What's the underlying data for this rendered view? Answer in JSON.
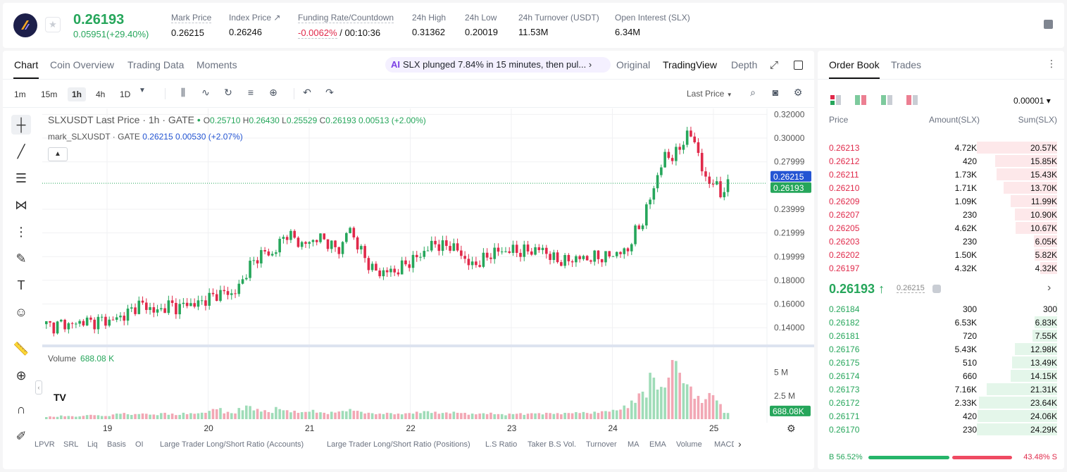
{
  "header": {
    "last_price": "0.26193",
    "change": "0.05951(+29.40%)",
    "stats": [
      {
        "label": "Mark Price",
        "value": "0.26215"
      },
      {
        "label": "Index Price ↗",
        "value": "0.26246"
      },
      {
        "label": "Funding Rate/Countdown",
        "value_red": "-0.0062%",
        "value": " / 00:10:36"
      },
      {
        "label": "24h High",
        "value": "0.31362"
      },
      {
        "label": "24h Low",
        "value": "0.20019"
      },
      {
        "label": "24h Turnover (USDT)",
        "value": "11.53M"
      },
      {
        "label": "Open Interest (SLX)",
        "value": "6.34M"
      }
    ]
  },
  "chart_tabs": [
    "Chart",
    "Coin Overview",
    "Trading Data",
    "Moments"
  ],
  "alert": {
    "ai": "AI",
    "text": "SLX plunged 7.84% in 15 minutes, then pul...",
    "chev": "›"
  },
  "view_tabs": [
    "Original",
    "TradingView",
    "Depth"
  ],
  "timeframes": [
    "1m",
    "15m",
    "1h",
    "4h",
    "1D"
  ],
  "price_type": "Last Price",
  "legend": {
    "symbol": "SLXUSDT Last Price · 1h · GATE",
    "o": "O",
    "o_v": "0.25710",
    "h": "H",
    "h_v": "0.26430",
    "l": "L",
    "l_v": "0.25529",
    "c": "C",
    "c_v": "0.26193",
    "chg": "0.00513 (+2.00%)",
    "mark": "mark_SLXUSDT · GATE",
    "mark_v": "0.26215",
    "mark_chg": "0.00530 (+2.07%)"
  },
  "volume_label": "Volume",
  "volume_value": "688.08 K",
  "indicators": [
    "LPVR",
    "SRL",
    "Liq",
    "Basis",
    "OI",
    "Large Trader Long/Short Ratio (Accounts)",
    "Large Trader Long/Short Ratio (Positions)",
    "L.S Ratio",
    "Taker B.S Vol.",
    "Turnover",
    "MA",
    "EMA",
    "Volume",
    "MACD"
  ],
  "chart_data": {
    "type": "candlestick",
    "x_ticks": [
      "19",
      "20",
      "21",
      "22",
      "23",
      "24",
      "25"
    ],
    "y_ticks": [
      "0.32000",
      "0.30000",
      "0.27999",
      "0.23999",
      "0.21999",
      "0.19999",
      "0.18000",
      "0.16000",
      "0.14000"
    ],
    "price_ylim": [
      0.13,
      0.325
    ],
    "mark_price_label": "0.26215",
    "last_price_label": "0.26193",
    "volume_y_ticks": [
      "5 M",
      "2.5 M"
    ],
    "volume_ylim": [
      0,
      7000000
    ],
    "volume_last_label": "688.08K",
    "close_path": [
      0.143,
      0.141,
      0.144,
      0.142,
      0.144,
      0.146,
      0.144,
      0.147,
      0.145,
      0.148,
      0.15,
      0.155,
      0.16,
      0.158,
      0.153,
      0.156,
      0.16,
      0.156,
      0.161,
      0.159,
      0.162,
      0.165,
      0.168,
      0.17,
      0.168,
      0.175,
      0.19,
      0.197,
      0.205,
      0.2,
      0.21,
      0.22,
      0.215,
      0.21,
      0.212,
      0.216,
      0.214,
      0.208,
      0.205,
      0.226,
      0.212,
      0.2,
      0.19,
      0.186,
      0.188,
      0.187,
      0.192,
      0.196,
      0.2,
      0.205,
      0.212,
      0.208,
      0.21,
      0.206,
      0.198,
      0.192,
      0.196,
      0.2,
      0.205,
      0.204,
      0.206,
      0.204,
      0.205,
      0.205,
      0.207,
      0.2,
      0.197,
      0.196,
      0.198,
      0.199,
      0.198,
      0.2,
      0.199,
      0.202,
      0.203,
      0.205,
      0.22,
      0.23,
      0.25,
      0.27,
      0.287,
      0.283,
      0.295,
      0.305,
      0.293,
      0.263,
      0.265,
      0.252,
      0.262
    ],
    "volume_path": [
      0.3,
      0.28,
      0.4,
      0.35,
      0.3,
      0.45,
      0.5,
      0.42,
      0.35,
      0.6,
      0.7,
      0.55,
      0.65,
      0.6,
      0.5,
      0.7,
      0.6,
      0.5,
      0.7,
      0.65,
      0.7,
      0.9,
      1.2,
      0.8,
      0.7,
      1.2,
      1.5,
      1.1,
      1.0,
      0.8,
      1.3,
      1.0,
      0.9,
      0.8,
      1.0,
      0.8,
      0.7,
      0.8,
      0.9,
      1.1,
      1.0,
      0.8,
      0.7,
      0.6,
      0.7,
      0.6,
      0.65,
      0.7,
      0.8,
      0.9,
      0.8,
      0.7,
      0.75,
      0.8,
      0.7,
      0.6,
      0.65,
      0.7,
      0.6,
      0.55,
      0.6,
      0.65,
      0.6,
      0.7,
      0.65,
      0.7,
      0.65,
      0.7,
      0.75,
      0.8,
      0.7,
      0.8,
      0.9,
      1.0,
      1.1,
      1.5,
      2.0,
      3.0,
      5.0,
      3.5,
      4.5,
      7.0,
      5.0,
      3.8,
      2.5,
      2.2,
      3.0,
      2.0,
      0.7
    ]
  },
  "orderbook": {
    "tabs": [
      "Order Book",
      "Trades"
    ],
    "precision": "0.00001 ▾",
    "headers": [
      "Price",
      "Amount(SLX)",
      "Sum(SLX)"
    ],
    "asks": [
      {
        "price": "0.26213",
        "amount": "4.72K",
        "sum": "20.57K",
        "depth": 1.0
      },
      {
        "price": "0.26212",
        "amount": "420",
        "sum": "15.85K",
        "depth": 0.77
      },
      {
        "price": "0.26211",
        "amount": "1.73K",
        "sum": "15.43K",
        "depth": 0.75
      },
      {
        "price": "0.26210",
        "amount": "1.71K",
        "sum": "13.70K",
        "depth": 0.67
      },
      {
        "price": "0.26209",
        "amount": "1.09K",
        "sum": "11.99K",
        "depth": 0.58
      },
      {
        "price": "0.26207",
        "amount": "230",
        "sum": "10.90K",
        "depth": 0.53
      },
      {
        "price": "0.26205",
        "amount": "4.62K",
        "sum": "10.67K",
        "depth": 0.52
      },
      {
        "price": "0.26203",
        "amount": "230",
        "sum": "6.05K",
        "depth": 0.29
      },
      {
        "price": "0.26202",
        "amount": "1.50K",
        "sum": "5.82K",
        "depth": 0.28
      },
      {
        "price": "0.26197",
        "amount": "4.32K",
        "sum": "4.32K",
        "depth": 0.21
      }
    ],
    "mid": {
      "price": "0.26193 ↑",
      "mark": "0.26215",
      "chev": "›"
    },
    "bids": [
      {
        "price": "0.26184",
        "amount": "300",
        "sum": "300",
        "depth": 0.01
      },
      {
        "price": "0.26182",
        "amount": "6.53K",
        "sum": "6.83K",
        "depth": 0.28
      },
      {
        "price": "0.26181",
        "amount": "720",
        "sum": "7.55K",
        "depth": 0.31
      },
      {
        "price": "0.26176",
        "amount": "5.43K",
        "sum": "12.98K",
        "depth": 0.53
      },
      {
        "price": "0.26175",
        "amount": "510",
        "sum": "13.49K",
        "depth": 0.56
      },
      {
        "price": "0.26174",
        "amount": "660",
        "sum": "14.15K",
        "depth": 0.58
      },
      {
        "price": "0.26173",
        "amount": "7.16K",
        "sum": "21.31K",
        "depth": 0.88
      },
      {
        "price": "0.26172",
        "amount": "2.33K",
        "sum": "23.64K",
        "depth": 0.97
      },
      {
        "price": "0.26171",
        "amount": "420",
        "sum": "24.06K",
        "depth": 0.99
      },
      {
        "price": "0.26170",
        "amount": "230",
        "sum": "24.29K",
        "depth": 1.0
      }
    ],
    "buy_ratio": "B 56.52%",
    "sell_ratio": "43.48% S",
    "buy_fraction": 0.5652
  },
  "colors": {
    "up": "#26a65b",
    "down": "#e0294a",
    "mark": "#2455d3"
  }
}
